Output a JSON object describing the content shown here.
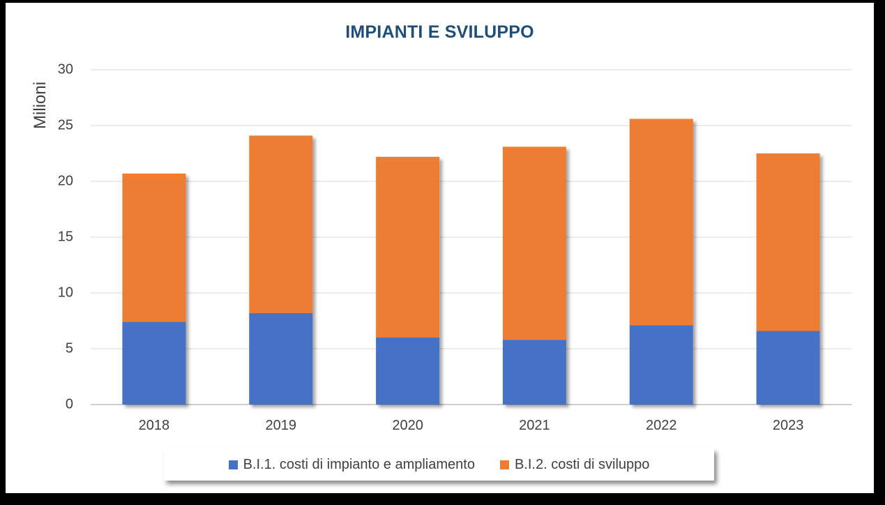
{
  "chart_data": {
    "type": "bar",
    "stacked": true,
    "title": "IMPIANTI E SVILUPPO",
    "xlabel": "",
    "ylabel": "Milioni",
    "ylim": [
      0,
      30
    ],
    "yticks": [
      "0",
      "5",
      "10",
      "15",
      "20",
      "25",
      "30"
    ],
    "categories": [
      "2018",
      "2019",
      "2020",
      "2021",
      "2022",
      "2023"
    ],
    "series": [
      {
        "name": "B.I.1. costi di impianto e ampliamento",
        "color": "#4472c4",
        "values": [
          7.4,
          8.2,
          6.0,
          5.8,
          7.1,
          6.6
        ]
      },
      {
        "name": "B.I.2. costi di sviluppo",
        "color": "#ed7d31",
        "values": [
          13.3,
          15.9,
          16.2,
          17.3,
          18.5,
          15.9
        ]
      }
    ],
    "grid": true,
    "legend_position": "bottom"
  }
}
